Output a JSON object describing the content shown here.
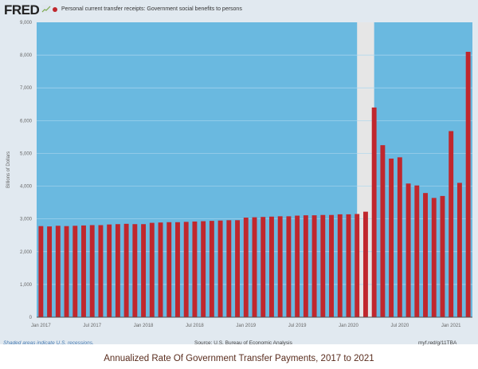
{
  "header": {
    "logo": "FRED",
    "logo_icon": "line-graph-icon"
  },
  "chart_data": {
    "type": "bar",
    "title": "",
    "legend": [
      "Personal current transfer receipts: Government social benefits to persons"
    ],
    "legend_placement": "top-left",
    "ylabel": "Billions of Dollars",
    "xlabel": "",
    "ylim": [
      0,
      9000
    ],
    "yticks": [
      "0",
      "1,000",
      "2,000",
      "3,000",
      "4,000",
      "5,000",
      "6,000",
      "7,000",
      "8,000",
      "9,000"
    ],
    "xtick_labels": [
      {
        "label": "Jan 2017",
        "index": 0
      },
      {
        "label": "Jul 2017",
        "index": 6
      },
      {
        "label": "Jan 2018",
        "index": 12
      },
      {
        "label": "Jul 2018",
        "index": 18
      },
      {
        "label": "Jan 2019",
        "index": 24
      },
      {
        "label": "Jul 2019",
        "index": 30
      },
      {
        "label": "Jan 2020",
        "index": 36
      },
      {
        "label": "Jul 2020",
        "index": 42
      },
      {
        "label": "Jan 2021",
        "index": 48
      }
    ],
    "grid": true,
    "categories": [
      "2017-01",
      "2017-02",
      "2017-03",
      "2017-04",
      "2017-05",
      "2017-06",
      "2017-07",
      "2017-08",
      "2017-09",
      "2017-10",
      "2017-11",
      "2017-12",
      "2018-01",
      "2018-02",
      "2018-03",
      "2018-04",
      "2018-05",
      "2018-06",
      "2018-07",
      "2018-08",
      "2018-09",
      "2018-10",
      "2018-11",
      "2018-12",
      "2019-01",
      "2019-02",
      "2019-03",
      "2019-04",
      "2019-05",
      "2019-06",
      "2019-07",
      "2019-08",
      "2019-09",
      "2019-10",
      "2019-11",
      "2019-12",
      "2020-01",
      "2020-02",
      "2020-03",
      "2020-04",
      "2020-05",
      "2020-06",
      "2020-07",
      "2020-08",
      "2020-09",
      "2020-10",
      "2020-11",
      "2020-12",
      "2021-01",
      "2021-02",
      "2021-03"
    ],
    "values": [
      2780,
      2770,
      2790,
      2780,
      2790,
      2800,
      2810,
      2810,
      2830,
      2840,
      2850,
      2840,
      2840,
      2880,
      2890,
      2900,
      2900,
      2910,
      2920,
      2930,
      2940,
      2950,
      2960,
      2960,
      3040,
      3050,
      3060,
      3070,
      3080,
      3080,
      3100,
      3110,
      3110,
      3120,
      3120,
      3140,
      3140,
      3150,
      3220,
      6400,
      5250,
      4840,
      4880,
      4080,
      4020,
      3790,
      3640,
      3700,
      5680,
      4100,
      8100
    ],
    "recession": [
      "2020-02",
      "2020-04"
    ],
    "colors": {
      "bar": "#c0272d",
      "plot_bg": "#6ab9e0",
      "recession": "#e6e6e6",
      "panel": "#e1e9f0"
    }
  },
  "footer": {
    "note": "Shaded areas indicate U.S. recessions.",
    "source": "Source: U.S. Bureau of Economic Analysis",
    "link": "myf.red/g/11TBA"
  },
  "caption": "Annualized Rate Of Government Transfer Payments, 2017 to 2021"
}
